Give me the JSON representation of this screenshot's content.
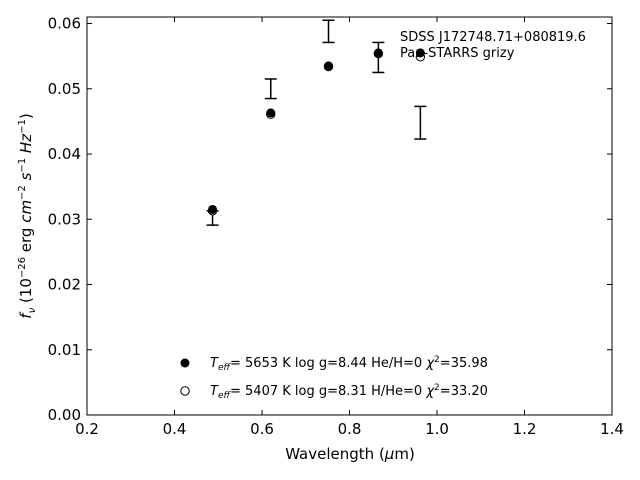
{
  "chart_data": {
    "type": "scatter",
    "xlabel": "Wavelength (μm)",
    "ylabel": "f_ν (10^-26 erg cm^-2 s^-1 Hz^-1)",
    "xlim": [
      0.2,
      1.4
    ],
    "ylim": [
      0.0,
      0.061
    ],
    "x_ticks": [
      "0.2",
      "0.4",
      "0.6",
      "0.8",
      "1.0",
      "1.2",
      "1.4"
    ],
    "y_ticks": [
      "0.00",
      "0.01",
      "0.02",
      "0.03",
      "0.04",
      "0.05",
      "0.06"
    ],
    "x_tick_values": [
      0.2,
      0.4,
      0.6,
      0.8,
      1.0,
      1.2,
      1.4
    ],
    "y_tick_values": [
      0.0,
      0.01,
      0.02,
      0.03,
      0.04,
      0.05,
      0.06
    ],
    "legend": {
      "placement": "top-right",
      "entries": [
        "SDSS J172748.71+080819.6",
        "Pan-STARRS grizy"
      ]
    },
    "observed": {
      "name": "Pan-STARRS grizy",
      "x": [
        0.487,
        0.62,
        0.752,
        0.866,
        0.962
      ],
      "y": [
        0.0302,
        0.05,
        0.0588,
        0.0548,
        0.0448
      ],
      "yerr": [
        0.0011,
        0.0015,
        0.0017,
        0.0023,
        0.0025
      ]
    },
    "series": [
      {
        "model": "filled",
        "x": [
          0.487,
          0.62,
          0.752,
          0.866,
          0.962
        ],
        "y": [
          0.0315,
          0.0463,
          0.0535,
          0.0555,
          0.0555
        ]
      },
      {
        "model": "open",
        "x": [
          0.487,
          0.62,
          0.752,
          0.866,
          0.962
        ],
        "y": [
          0.0313,
          0.0461,
          0.0534,
          0.0554,
          0.0549
        ]
      }
    ],
    "fit_labels": [
      {
        "teff": "5653 K",
        "logg": "log g=8.44",
        "comp": "He/H=0",
        "chi2": "35.98"
      },
      {
        "teff": "5407 K",
        "logg": "log g=8.31",
        "comp": "H/He=0",
        "chi2": "33.20"
      }
    ]
  }
}
